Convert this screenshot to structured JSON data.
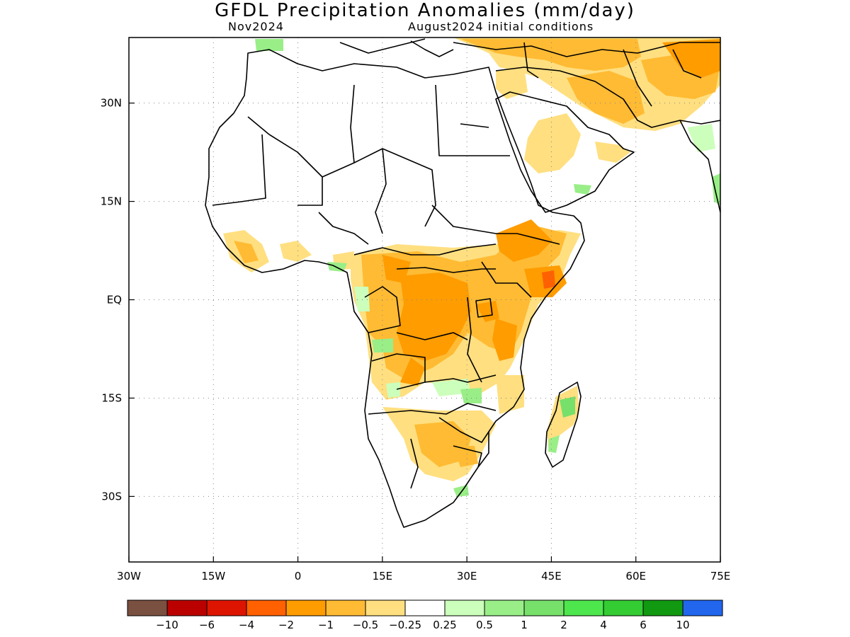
{
  "header": {
    "title": "GFDL Precipitation Anomalies (mm/day)",
    "month": "Nov2024",
    "init": "August2024 initial conditions"
  },
  "axes": {
    "lon_labels": [
      "30W",
      "15W",
      "0",
      "15E",
      "30E",
      "45E",
      "60E",
      "75E"
    ],
    "lat_labels": [
      "30N",
      "15N",
      "EQ",
      "15S",
      "30S"
    ],
    "lon_range": [
      -30,
      75
    ],
    "lat_range": [
      -40,
      40
    ],
    "grid": "dotted"
  },
  "legend": {
    "colors": [
      "#7a5040",
      "#bb0000",
      "#dd1500",
      "#ff6000",
      "#ff9c00",
      "#ffbb33",
      "#ffdf80",
      "#ffffff",
      "#ccffbb",
      "#99ee88",
      "#77e06a",
      "#4de64d",
      "#33cc33",
      "#119911",
      "#2266ee"
    ],
    "labels": [
      "−10",
      "−6",
      "−4",
      "−2",
      "−1",
      "−0.5",
      "−0.25",
      "0.25",
      "0.5",
      "1",
      "2",
      "4",
      "6",
      "10"
    ]
  }
}
